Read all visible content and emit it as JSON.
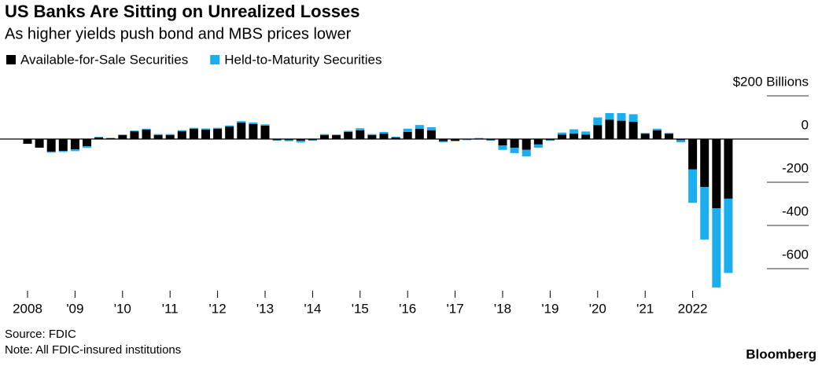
{
  "chart_data": {
    "type": "bar",
    "stacked": true,
    "title": "US Banks Are Sitting on Unrealized Losses",
    "subtitle": "As higher yields push bond and MBS prices lower",
    "source": "Source: FDIC",
    "note": "Note: All FDIC-insured institutions",
    "brand": "Bloomberg",
    "categories": [
      "2008",
      null,
      null,
      null,
      "'09",
      null,
      null,
      null,
      "'10",
      null,
      null,
      null,
      "'11",
      null,
      null,
      null,
      "'12",
      null,
      null,
      null,
      "'13",
      null,
      null,
      null,
      "'14",
      null,
      null,
      null,
      "'15",
      null,
      null,
      null,
      "'16",
      null,
      null,
      null,
      "'17",
      null,
      null,
      null,
      "'18",
      null,
      null,
      null,
      "'19",
      null,
      null,
      null,
      "'20",
      null,
      null,
      null,
      "'21",
      null,
      null,
      null,
      "2022",
      null,
      null,
      null
    ],
    "series": [
      {
        "name": "Available-for-Sale Securities",
        "color": "#000000",
        "values": [
          -22,
          -40,
          -58,
          -55,
          -48,
          -33,
          8,
          4,
          18,
          36,
          44,
          18,
          18,
          36,
          47,
          44,
          47,
          58,
          76,
          69,
          62,
          -5,
          -5,
          -8,
          -5,
          18,
          18,
          33,
          40,
          18,
          25,
          8,
          33,
          47,
          40,
          -10,
          -8,
          -3,
          3,
          -5,
          -30,
          -40,
          -50,
          -25,
          -5,
          20,
          25,
          20,
          65,
          90,
          85,
          80,
          25,
          40,
          25,
          -5,
          -140,
          -222,
          -320,
          -276
        ]
      },
      {
        "name": "Held-to-Maturity Securities",
        "color": "#1aaeef",
        "values": [
          0,
          0,
          -5,
          -5,
          -8,
          -8,
          2,
          2,
          3,
          3,
          4,
          5,
          5,
          5,
          5,
          5,
          5,
          5,
          7,
          8,
          6,
          -3,
          -5,
          -8,
          -3,
          5,
          3,
          5,
          10,
          5,
          8,
          3,
          15,
          18,
          15,
          -5,
          -3,
          -2,
          2,
          -3,
          -20,
          -25,
          -30,
          -15,
          -3,
          10,
          20,
          15,
          35,
          30,
          35,
          35,
          3,
          8,
          3,
          -10,
          -155,
          -243,
          -367,
          -344
        ]
      }
    ],
    "ylim": [
      -700,
      200
    ],
    "yticks": [
      {
        "value": 200,
        "label": "$200 Billions"
      },
      0,
      -200,
      -400,
      -600
    ]
  }
}
